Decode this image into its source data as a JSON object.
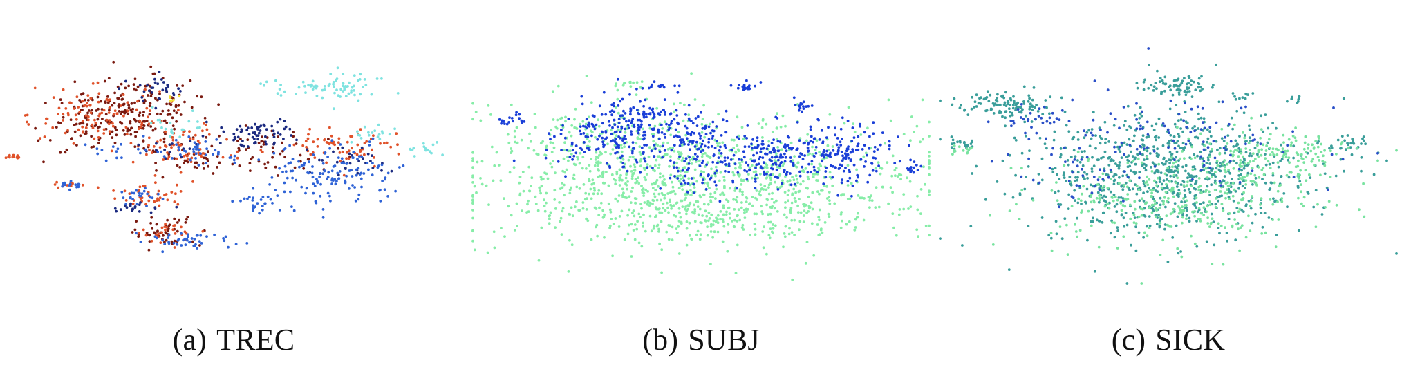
{
  "chart_data": [
    {
      "type": "scatter",
      "caption_label": "(a)",
      "caption_name": "TREC",
      "title": "",
      "xlabel": "",
      "ylabel": "",
      "xlim": [
        0,
        100
      ],
      "ylim": [
        0,
        100
      ],
      "grid": false,
      "legend": "none",
      "axes_visible": false,
      "series": [
        {
          "color": "#7a1a10",
          "clusters": [
            {
              "cx": 28,
              "cy": 75,
              "sx": 8,
              "sy": 7,
              "n": 170
            },
            {
              "cx": 22,
              "cy": 66,
              "sx": 7,
              "sy": 5,
              "n": 90
            },
            {
              "cx": 58,
              "cy": 56,
              "sx": 8,
              "sy": 5,
              "n": 60
            },
            {
              "cx": 35,
              "cy": 22,
              "sx": 4,
              "sy": 3,
              "n": 50
            },
            {
              "cx": 40,
              "cy": 52,
              "sx": 3,
              "sy": 3,
              "n": 25
            }
          ]
        },
        {
          "color": "#e0522a",
          "clusters": [
            {
              "cx": 20,
              "cy": 72,
              "sx": 7,
              "sy": 6,
              "n": 110
            },
            {
              "cx": 38,
              "cy": 58,
              "sx": 6,
              "sy": 5,
              "n": 70
            },
            {
              "cx": 74,
              "cy": 58,
              "sx": 7,
              "sy": 4,
              "n": 70
            },
            {
              "cx": 32,
              "cy": 38,
              "sx": 4,
              "sy": 3,
              "n": 40
            },
            {
              "cx": 36,
              "cy": 22,
              "sx": 4,
              "sy": 2,
              "n": 25
            },
            {
              "cx": 2,
              "cy": 54,
              "sx": 1,
              "sy": 1,
              "n": 12
            },
            {
              "cx": 14,
              "cy": 42,
              "sx": 2,
              "sy": 1,
              "n": 10
            }
          ]
        },
        {
          "color": "#1b2a80",
          "clusters": [
            {
              "cx": 56,
              "cy": 64,
              "sx": 4,
              "sy": 3,
              "n": 65
            },
            {
              "cx": 32,
              "cy": 82,
              "sx": 3,
              "sy": 3,
              "n": 30
            },
            {
              "cx": 76,
              "cy": 52,
              "sx": 4,
              "sy": 3,
              "n": 30
            },
            {
              "cx": 30,
              "cy": 32,
              "sx": 3,
              "sy": 2,
              "n": 20
            },
            {
              "cx": 36,
              "cy": 58,
              "sx": 3,
              "sy": 2,
              "n": 15
            }
          ]
        },
        {
          "color": "#2f63d6",
          "clusters": [
            {
              "cx": 72,
              "cy": 46,
              "sx": 8,
              "sy": 6,
              "n": 140
            },
            {
              "cx": 42,
              "cy": 56,
              "sx": 4,
              "sy": 3,
              "n": 40
            },
            {
              "cx": 40,
              "cy": 18,
              "sx": 5,
              "sy": 2,
              "n": 45
            },
            {
              "cx": 30,
              "cy": 37,
              "sx": 3,
              "sy": 2,
              "n": 22
            },
            {
              "cx": 56,
              "cy": 34,
              "sx": 3,
              "sy": 2,
              "n": 25
            },
            {
              "cx": 14,
              "cy": 42,
              "sx": 2,
              "sy": 1,
              "n": 14
            },
            {
              "cx": 24,
              "cy": 58,
              "sx": 4,
              "sy": 3,
              "n": 15
            }
          ]
        },
        {
          "color": "#7fe3e0",
          "clusters": [
            {
              "cx": 70,
              "cy": 84,
              "sx": 7,
              "sy": 3,
              "n": 75
            },
            {
              "cx": 80,
              "cy": 64,
              "sx": 3,
              "sy": 2,
              "n": 18
            },
            {
              "cx": 38,
              "cy": 68,
              "sx": 4,
              "sy": 3,
              "n": 20
            },
            {
              "cx": 92,
              "cy": 57,
              "sx": 2,
              "sy": 2,
              "n": 15
            }
          ]
        },
        {
          "color": "#f2e23a",
          "clusters": [
            {
              "cx": 37,
              "cy": 79,
              "sx": 1,
              "sy": 1,
              "n": 6
            }
          ]
        }
      ]
    },
    {
      "type": "scatter",
      "caption_label": "(b)",
      "caption_name": "SUBJ",
      "title": "",
      "xlabel": "",
      "ylabel": "",
      "xlim": [
        0,
        100
      ],
      "ylim": [
        0,
        100
      ],
      "grid": false,
      "legend": "none",
      "axes_visible": false,
      "series": [
        {
          "color": "#87eda8",
          "clusters": [
            {
              "cx": 50,
              "cy": 44,
              "sx": 24,
              "sy": 14,
              "n": 1000
            },
            {
              "cx": 28,
              "cy": 56,
              "sx": 10,
              "sy": 12,
              "n": 180
            },
            {
              "cx": 56,
              "cy": 30,
              "sx": 16,
              "sy": 6,
              "n": 180
            },
            {
              "cx": 34,
              "cy": 85,
              "sx": 2,
              "sy": 1,
              "n": 12
            }
          ]
        },
        {
          "color": "#1a3fd8",
          "clusters": [
            {
              "cx": 30,
              "cy": 63,
              "sx": 7,
              "sy": 7,
              "n": 190
            },
            {
              "cx": 48,
              "cy": 58,
              "sx": 5,
              "sy": 8,
              "n": 170
            },
            {
              "cx": 64,
              "cy": 54,
              "sx": 5,
              "sy": 6,
              "n": 150
            },
            {
              "cx": 80,
              "cy": 56,
              "sx": 6,
              "sy": 7,
              "n": 160
            },
            {
              "cx": 38,
              "cy": 72,
              "sx": 3,
              "sy": 2,
              "n": 40
            },
            {
              "cx": 8,
              "cy": 70,
              "sx": 1.5,
              "sy": 1.5,
              "n": 18
            },
            {
              "cx": 40,
              "cy": 84,
              "sx": 2,
              "sy": 1,
              "n": 15
            },
            {
              "cx": 60,
              "cy": 84,
              "sx": 1.5,
              "sy": 1,
              "n": 18
            },
            {
              "cx": 72,
              "cy": 76,
              "sx": 1.5,
              "sy": 1,
              "n": 14
            },
            {
              "cx": 96,
              "cy": 49,
              "sx": 1,
              "sy": 1.5,
              "n": 14
            }
          ]
        }
      ]
    },
    {
      "type": "scatter",
      "caption_label": "(c)",
      "caption_name": "SICK",
      "title": "",
      "xlabel": "",
      "ylabel": "",
      "xlim": [
        0,
        100
      ],
      "ylim": [
        0,
        100
      ],
      "grid": false,
      "legend": "none",
      "axes_visible": false,
      "series": [
        {
          "color": "#3a9e9a",
          "clusters": [
            {
              "cx": 50,
              "cy": 46,
              "sx": 16,
              "sy": 14,
              "n": 850
            },
            {
              "cx": 14,
              "cy": 76,
              "sx": 5,
              "sy": 3,
              "n": 110
            },
            {
              "cx": 52,
              "cy": 84,
              "sx": 4,
              "sy": 2,
              "n": 70
            },
            {
              "cx": 5,
              "cy": 60,
              "sx": 2,
              "sy": 1.5,
              "n": 20
            },
            {
              "cx": 90,
              "cy": 60,
              "sx": 3,
              "sy": 2,
              "n": 25
            },
            {
              "cx": 66,
              "cy": 80,
              "sx": 1.5,
              "sy": 1,
              "n": 10
            },
            {
              "cx": 78,
              "cy": 78,
              "sx": 1,
              "sy": 1,
              "n": 8
            }
          ]
        },
        {
          "color": "#79e3a0",
          "clusters": [
            {
              "cx": 50,
              "cy": 36,
              "sx": 15,
              "sy": 10,
              "n": 300
            },
            {
              "cx": 68,
              "cy": 50,
              "sx": 9,
              "sy": 7,
              "n": 140
            },
            {
              "cx": 80,
              "cy": 56,
              "sx": 5,
              "sy": 4,
              "n": 50
            },
            {
              "cx": 4,
              "cy": 57,
              "sx": 1.5,
              "sy": 1,
              "n": 14
            }
          ]
        },
        {
          "color": "#2a4fc8",
          "clusters": [
            {
              "cx": 50,
              "cy": 60,
              "sx": 18,
              "sy": 10,
              "n": 130
            },
            {
              "cx": 22,
              "cy": 70,
              "sx": 3,
              "sy": 3,
              "n": 25
            },
            {
              "cx": 30,
              "cy": 44,
              "sx": 6,
              "sy": 6,
              "n": 20
            }
          ]
        }
      ]
    }
  ]
}
